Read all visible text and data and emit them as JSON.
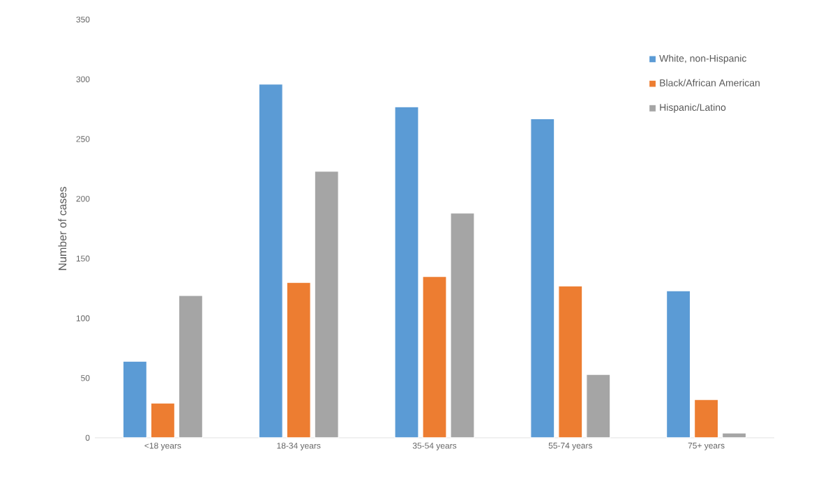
{
  "chart_data": {
    "type": "bar",
    "ylabel": "Number of cases",
    "categories": [
      "<18 years",
      "18-34 years",
      "35-54 years",
      "55-74 years",
      "75+ years"
    ],
    "series": [
      {
        "name": "White, non-Hispanic",
        "color": "#5b9bd5",
        "values": [
          64,
          296,
          277,
          267,
          123
        ]
      },
      {
        "name": "Black/African American",
        "color": "#ed7d31",
        "values": [
          29,
          130,
          135,
          127,
          32
        ]
      },
      {
        "name": "Hispanic/Latino",
        "color": "#a5a5a5",
        "values": [
          119,
          223,
          188,
          53,
          4
        ]
      }
    ],
    "ylim": [
      0,
      350
    ],
    "yticks": [
      0,
      50,
      100,
      150,
      200,
      250,
      300,
      350
    ],
    "legend": "top right",
    "grid": false
  }
}
